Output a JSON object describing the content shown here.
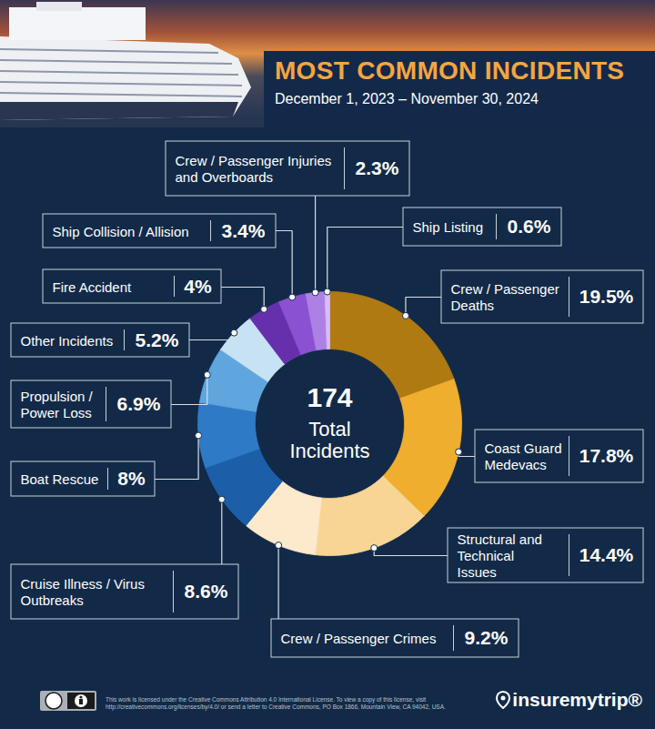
{
  "chart_data": {
    "type": "pie",
    "title": "MOST COMMON INCIDENTS",
    "subtitle": "December 1, 2023 – November 30, 2024",
    "categories": [
      "Crew / Passenger Deaths",
      "Coast Guard Medevacs",
      "Structural and Technical Issues",
      "Crew / Passenger Crimes",
      "Cruise Illness / Virus Outbreaks",
      "Boat Rescue",
      "Propulsion / Power Loss",
      "Other Incidents",
      "Fire Accident",
      "Ship Collision / Allision",
      "Crew / Passenger Injuries and Overboards",
      "Ship Listing"
    ],
    "values": [
      19.5,
      17.8,
      14.4,
      9.2,
      8.6,
      8,
      6.9,
      5.2,
      4,
      3.4,
      2.3,
      0.6
    ],
    "value_labels": [
      "19.5%",
      "17.8%",
      "14.4%",
      "9.2%",
      "8.6%",
      "8%",
      "6.9%",
      "5.2%",
      "4%",
      "3.4%",
      "2.3%",
      "0.6%"
    ],
    "colors": [
      "#b07a12",
      "#f0ae2e",
      "#f8d595",
      "#fde9cc",
      "#1d5ea8",
      "#2f7ac6",
      "#5fa6df",
      "#c7e2f5",
      "#6630ad",
      "#8a52d2",
      "#ad80e6",
      "#d8bdf6"
    ],
    "data_labels": true,
    "total": 174,
    "total_label": "Total Incidents",
    "license": "This work is licensed under the Creative Commons Attribution 4.0 International License. To view a copy of this license, visit http://creativecommons.org/licenses/by/4.0/ or send a letter to Creative Commons, PO Box 1866, Mountain View, CA 94042, USA.",
    "brand": "insuremytrip®"
  }
}
